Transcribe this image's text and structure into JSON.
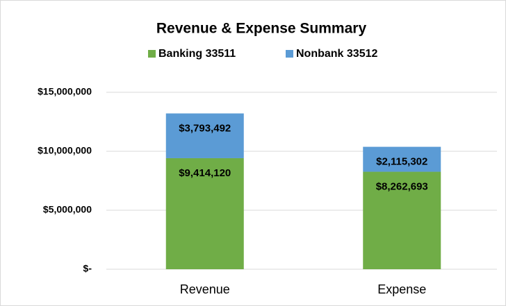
{
  "chart_data": {
    "type": "stacked_bar",
    "title": "Revenue & Expense Summary",
    "categories": [
      "Revenue",
      "Expense"
    ],
    "series": [
      {
        "name": "Banking 33511",
        "color": "#70ad47",
        "values": [
          9414120,
          8262693
        ],
        "value_labels": [
          "$9,414,120",
          "$8,262,693"
        ]
      },
      {
        "name": "Nonbank 33512",
        "color": "#5b9bd5",
        "values": [
          3793492,
          2115302
        ],
        "value_labels": [
          "$3,793,492",
          "$2,115,302"
        ]
      }
    ],
    "ylim": [
      0,
      15000000
    ],
    "yticks": [
      {
        "value": 0,
        "label": "$-"
      },
      {
        "value": 5000000,
        "label": "$5,000,000"
      },
      {
        "value": 10000000,
        "label": "$10,000,000"
      },
      {
        "value": 15000000,
        "label": "$15,000,000"
      }
    ],
    "grid": true,
    "legend": "top"
  }
}
